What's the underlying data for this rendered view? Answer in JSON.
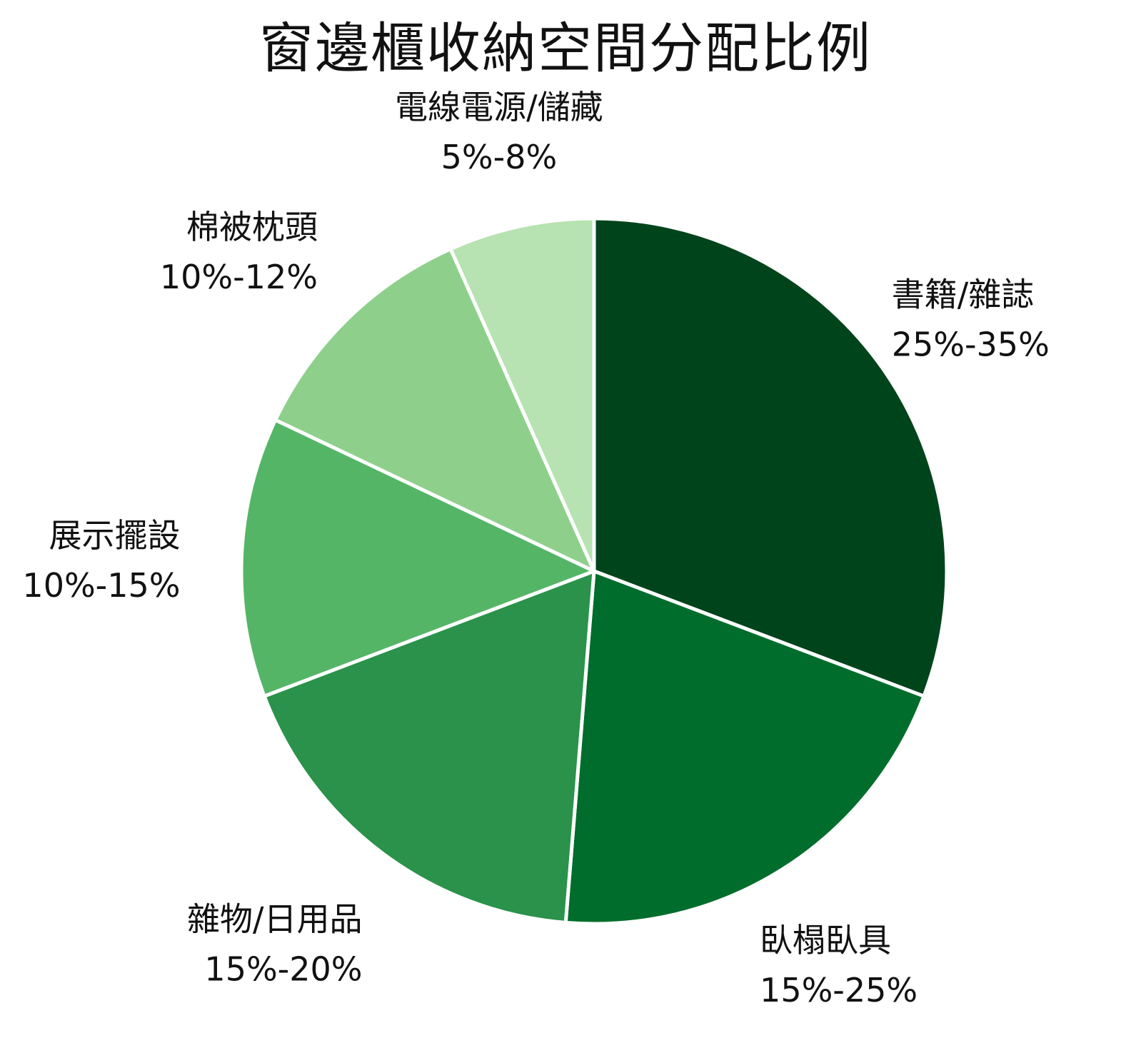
{
  "chart_data": {
    "type": "pie",
    "title": "窗邊櫃收納空間分配比例",
    "start_angle_deg": 0,
    "direction": "clockwise",
    "slices": [
      {
        "category": "書籍/雜誌",
        "range": "25%-35%",
        "value": 30,
        "color": "#00441b"
      },
      {
        "category": "臥榻臥具",
        "range": "15%-25%",
        "value": 20,
        "color": "#006d2c"
      },
      {
        "category": "雜物/日用品",
        "range": "15%-20%",
        "value": 17.5,
        "color": "#2a924a"
      },
      {
        "category": "展示擺設",
        "range": "10%-15%",
        "value": 12.5,
        "color": "#55b567"
      },
      {
        "category": "棉被枕頭",
        "range": "10%-12%",
        "value": 11,
        "color": "#8ed08b"
      },
      {
        "category": "電線電源/儲藏",
        "range": "5%-8%",
        "value": 6.5,
        "color": "#b7e2b1"
      }
    ]
  }
}
